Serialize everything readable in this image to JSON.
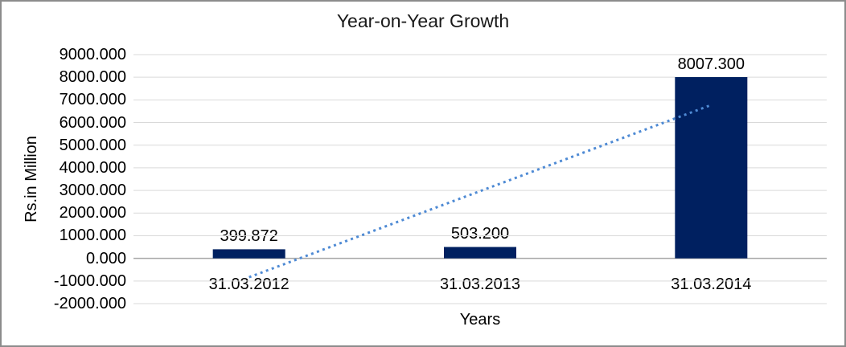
{
  "window": {
    "background": "#ffffff",
    "border_color": "#8c8c8c"
  },
  "chart_data": {
    "type": "bar",
    "title": "Year-on-Year Growth",
    "xlabel": "Years",
    "ylabel": "Rs.in Million",
    "categories": [
      "31.03.2012",
      "31.03.2013",
      "31.03.2014"
    ],
    "values": [
      399.872,
      503.2,
      8007.3
    ],
    "data_labels": [
      "399.872",
      "503.200",
      "8007.300"
    ],
    "ylim": [
      -2000,
      9000
    ],
    "ytick_values": [
      9000,
      8000,
      7000,
      6000,
      5000,
      4000,
      3000,
      2000,
      1000,
      0,
      -1000,
      -2000
    ],
    "ytick_labels": [
      "9000.000",
      "8000.000",
      "7000.000",
      "6000.000",
      "5000.000",
      "4000.000",
      "3000.000",
      "2000.000",
      "1000.000",
      "0.000",
      "-1000.000",
      "-2000.000"
    ],
    "grid": true,
    "legend": "none",
    "colors": {
      "bar": "#002060",
      "trendline": "#4E8AD4",
      "gridline": "#D9D9D9",
      "zero_axis": "#A6A6A6",
      "text": "#000000"
    },
    "trendline": {
      "type": "linear",
      "style": "dotted",
      "start_value": -834,
      "end_value": 6774
    }
  }
}
